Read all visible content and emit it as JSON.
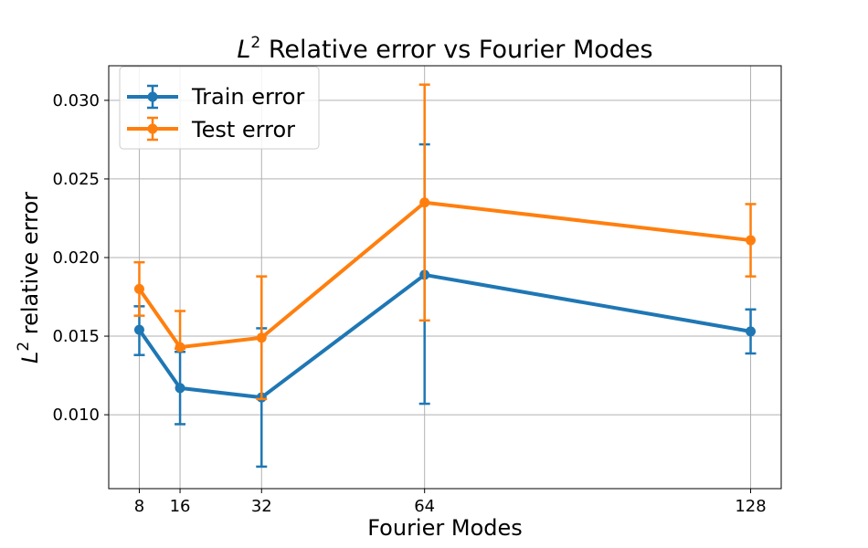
{
  "chart_data": {
    "type": "line",
    "title": {
      "base": "L",
      "sup": "2",
      "rest": " Relative error vs Fourier Modes"
    },
    "xlabel": "Fourier Modes",
    "ylabel": {
      "base": "L",
      "sup": "2",
      "rest": " relative error"
    },
    "x": [
      8,
      16,
      32,
      64,
      128
    ],
    "x_ticks": [
      "8",
      "16",
      "32",
      "64",
      "128"
    ],
    "xlim": [
      2,
      134
    ],
    "ylim": [
      0.0053,
      0.0322
    ],
    "y_ticks": [
      "0.010",
      "0.015",
      "0.020",
      "0.025",
      "0.030"
    ],
    "y_tick_values": [
      0.01,
      0.015,
      0.02,
      0.025,
      0.03
    ],
    "grid": true,
    "legend_position": "top-left",
    "series": [
      {
        "name": "Train error",
        "color": "#1f77b4",
        "values": [
          0.0154,
          0.0117,
          0.0111,
          0.0189,
          0.0153
        ],
        "err_low": [
          0.0138,
          0.0094,
          0.0067,
          0.0107,
          0.0139
        ],
        "err_high": [
          0.0169,
          0.014,
          0.0155,
          0.0272,
          0.0167
        ]
      },
      {
        "name": "Test error",
        "color": "#ff7f0e",
        "values": [
          0.018,
          0.0143,
          0.0149,
          0.0235,
          0.0211
        ],
        "err_low": [
          0.0163,
          0.0142,
          0.011,
          0.016,
          0.0188
        ],
        "err_high": [
          0.0197,
          0.0166,
          0.0188,
          0.031,
          0.0234
        ]
      }
    ]
  }
}
